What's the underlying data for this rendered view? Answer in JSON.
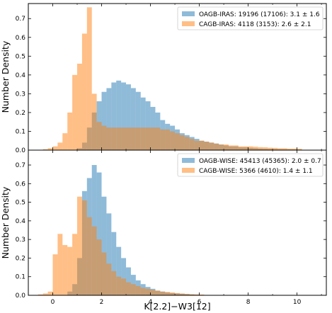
{
  "chart_data": [
    {
      "type": "histogram",
      "panel": "top",
      "xlabel": "",
      "ylabel": "Number Density",
      "xlim": [
        -1.0,
        11.2
      ],
      "ylim": [
        0,
        0.78
      ],
      "bin_width": 0.2,
      "x_ticks": [
        0,
        2,
        4,
        6,
        8,
        10
      ],
      "y_ticks": [
        0.0,
        0.1,
        0.2,
        0.3,
        0.4,
        0.5,
        0.6,
        0.7
      ],
      "y_tick_labels": [
        "0.0",
        "0.1",
        "0.2",
        "0.3",
        "0.4",
        "0.5",
        "0.6",
        "0.7"
      ],
      "legend_position": "top-right",
      "series": [
        {
          "name": "OAGB-IRAS: 19196 (17106): 3.1 ± 1.6",
          "color": "#1f77b4",
          "bin_starts": [
            1.0,
            1.2,
            1.4,
            1.6,
            1.8,
            2.0,
            2.2,
            2.4,
            2.6,
            2.8,
            3.0,
            3.2,
            3.4,
            3.6,
            3.8,
            4.0,
            4.2,
            4.4,
            4.6,
            4.8,
            5.0,
            5.2,
            5.4,
            5.6,
            5.8,
            6.0,
            6.2,
            6.4,
            6.6,
            6.8,
            7.0,
            7.2,
            7.4,
            7.6,
            7.8,
            8.0,
            8.2,
            8.4,
            8.6,
            8.8,
            9.0,
            9.2,
            9.4,
            9.6,
            9.8,
            10.0
          ],
          "values": [
            0.01,
            0.04,
            0.12,
            0.2,
            0.26,
            0.31,
            0.33,
            0.36,
            0.37,
            0.36,
            0.35,
            0.33,
            0.31,
            0.28,
            0.26,
            0.23,
            0.2,
            0.16,
            0.14,
            0.13,
            0.11,
            0.09,
            0.08,
            0.07,
            0.06,
            0.05,
            0.045,
            0.04,
            0.035,
            0.03,
            0.025,
            0.02,
            0.02,
            0.015,
            0.015,
            0.012,
            0.01,
            0.008,
            0.007,
            0.006,
            0.005,
            0.004,
            0.004,
            0.003,
            0.003,
            0.002
          ]
        },
        {
          "name": "CAGB-IRAS: 4118 (3153): 2.6 ± 2.1",
          "color": "#ff7f0e",
          "bin_starts": [
            -0.4,
            -0.2,
            0.0,
            0.2,
            0.4,
            0.6,
            0.8,
            1.0,
            1.2,
            1.4,
            1.6,
            1.8,
            2.0,
            2.2,
            2.4,
            2.6,
            2.8,
            3.0,
            3.2,
            3.4,
            3.6,
            3.8,
            4.0,
            4.2,
            4.4,
            4.6,
            4.8,
            5.0,
            5.2,
            5.4,
            5.6,
            5.8,
            6.0,
            6.2,
            6.4,
            6.6,
            6.8,
            7.0,
            7.2,
            7.4,
            7.6,
            7.8,
            8.0,
            8.2,
            8.4,
            8.6,
            8.8,
            9.0,
            9.2,
            9.4,
            9.6,
            9.8,
            10.0
          ],
          "values": [
            0.005,
            0.01,
            0.02,
            0.04,
            0.09,
            0.2,
            0.4,
            0.46,
            0.62,
            0.76,
            0.3,
            0.15,
            0.13,
            0.12,
            0.12,
            0.12,
            0.12,
            0.12,
            0.12,
            0.12,
            0.12,
            0.12,
            0.12,
            0.12,
            0.11,
            0.11,
            0.1,
            0.09,
            0.08,
            0.07,
            0.06,
            0.05,
            0.05,
            0.045,
            0.04,
            0.035,
            0.03,
            0.03,
            0.025,
            0.025,
            0.02,
            0.02,
            0.02,
            0.018,
            0.016,
            0.015,
            0.013,
            0.012,
            0.01,
            0.01,
            0.008,
            0.008,
            0.007
          ]
        }
      ]
    },
    {
      "type": "histogram",
      "panel": "bottom",
      "xlabel": "K[2.2]−W3[12]",
      "ylabel": "Number Density",
      "xlim": [
        -1.0,
        11.2
      ],
      "ylim": [
        0,
        0.78
      ],
      "bin_width": 0.2,
      "x_ticks": [
        0,
        2,
        4,
        6,
        8,
        10
      ],
      "x_tick_labels": [
        "0",
        "2",
        "4",
        "6",
        "8",
        "10"
      ],
      "y_ticks": [
        0.0,
        0.1,
        0.2,
        0.3,
        0.4,
        0.5,
        0.6,
        0.7
      ],
      "y_tick_labels": [
        "0.0",
        "0.1",
        "0.2",
        "0.3",
        "0.4",
        "0.5",
        "0.6",
        "0.7"
      ],
      "legend_position": "top-right",
      "series": [
        {
          "name": "OAGB-WISE: 45413 (45365): 2.0 ± 0.7",
          "color": "#1f77b4",
          "bin_starts": [
            0.6,
            0.8,
            1.0,
            1.2,
            1.4,
            1.6,
            1.8,
            2.0,
            2.2,
            2.4,
            2.6,
            2.8,
            3.0,
            3.2,
            3.4,
            3.6,
            3.8,
            4.0,
            4.2,
            4.4,
            4.6,
            4.8,
            5.0,
            5.2,
            5.4,
            5.6,
            5.8,
            6.0
          ],
          "values": [
            0.02,
            0.06,
            0.2,
            0.56,
            0.63,
            0.7,
            0.66,
            0.53,
            0.44,
            0.34,
            0.26,
            0.2,
            0.15,
            0.11,
            0.08,
            0.06,
            0.045,
            0.035,
            0.025,
            0.02,
            0.015,
            0.012,
            0.01,
            0.008,
            0.006,
            0.004,
            0.003,
            0.002
          ]
        },
        {
          "name": "CAGB-WISE: 5366 (4610): 1.4 ± 1.1",
          "color": "#ff7f0e",
          "bin_starts": [
            -0.6,
            -0.4,
            -0.2,
            0.0,
            0.2,
            0.4,
            0.6,
            0.8,
            1.0,
            1.2,
            1.4,
            1.6,
            1.8,
            2.0,
            2.2,
            2.4,
            2.6,
            2.8,
            3.0,
            3.2,
            3.4,
            3.6,
            3.8,
            4.0,
            4.2,
            4.4,
            4.6,
            4.8,
            5.0,
            5.2,
            5.4,
            5.6,
            5.8,
            6.0
          ],
          "values": [
            0.005,
            0.01,
            0.02,
            0.22,
            0.33,
            0.27,
            0.26,
            0.33,
            0.53,
            0.51,
            0.42,
            0.37,
            0.3,
            0.23,
            0.17,
            0.13,
            0.1,
            0.09,
            0.07,
            0.06,
            0.05,
            0.04,
            0.035,
            0.03,
            0.025,
            0.02,
            0.018,
            0.015,
            0.012,
            0.01,
            0.008,
            0.006,
            0.005,
            0.004
          ]
        }
      ]
    }
  ]
}
